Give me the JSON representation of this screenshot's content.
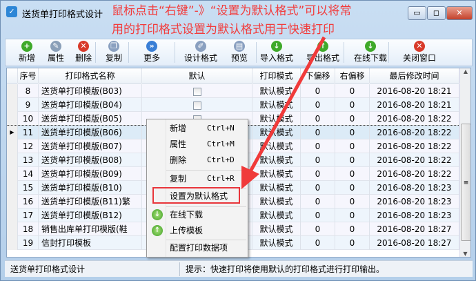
{
  "window": {
    "title": "送货单打印格式设计",
    "minimize": "▭",
    "maximize": "◻",
    "close": "✕"
  },
  "annotation": {
    "line1": "鼠标点击“右键”-》“设置为默认格式”可以将常",
    "line2": "用的打印格式设置为默认格式用于快速打印",
    "color": "#f23c3c"
  },
  "toolbar": [
    {
      "label": "新增",
      "icon": "plus-circle-icon",
      "color": "#3fa92a",
      "glyph": "+"
    },
    {
      "label": "属性",
      "icon": "edit-icon",
      "color": "#8a9fb8",
      "glyph": "✎"
    },
    {
      "label": "删除",
      "icon": "delete-circle-icon",
      "color": "#d83a2a",
      "glyph": "✕"
    },
    {
      "label": "复制",
      "icon": "copy-icon",
      "color": "#8aa0c0",
      "glyph": "❐"
    },
    {
      "label": "更多",
      "icon": "more-chevron-icon",
      "color": "#3a7fd6",
      "glyph": "»"
    },
    {
      "label": "设计格式",
      "icon": "design-icon",
      "color": "#8aa0c0",
      "glyph": "✐"
    },
    {
      "label": "预览",
      "icon": "preview-icon",
      "color": "#8aa0c0",
      "glyph": "▤"
    },
    {
      "label": "导入格式",
      "icon": "import-icon",
      "color": "#3fa92a",
      "glyph": "↓"
    },
    {
      "label": "导出格式",
      "icon": "export-icon",
      "color": "#3fa92a",
      "glyph": "↑"
    },
    {
      "label": "在线下载",
      "icon": "download-icon",
      "color": "#3fa92a",
      "glyph": "↓"
    },
    {
      "label": "关闭窗口",
      "icon": "close-window-icon",
      "color": "#d83a2a",
      "glyph": "✕"
    }
  ],
  "grid": {
    "columns": [
      "序号",
      "打印格式名称",
      "默认",
      "打印模式",
      "下偏移",
      "右偏移",
      "最后修改时间"
    ],
    "selected_row": "11",
    "rows": [
      [
        "8",
        "送货单打印模版(B03)",
        "",
        "默认模式",
        "0",
        "0",
        "2016-08-20 18:21"
      ],
      [
        "9",
        "送货单打印模版(B04)",
        "",
        "默认模式",
        "0",
        "0",
        "2016-08-20 18:21"
      ],
      [
        "10",
        "送货单打印模版(B05)",
        "",
        "默认模式",
        "0",
        "0",
        "2016-08-20 18:22"
      ],
      [
        "11",
        "送货单打印模版(B06)",
        "",
        "默认模式",
        "0",
        "0",
        "2016-08-20 18:22"
      ],
      [
        "12",
        "送货单打印模版(B07)",
        "",
        "默认模式",
        "0",
        "0",
        "2016-08-20 18:22"
      ],
      [
        "13",
        "送货单打印模版(B08)",
        "",
        "默认模式",
        "0",
        "0",
        "2016-08-20 18:22"
      ],
      [
        "14",
        "送货单打印模版(B09)",
        "",
        "默认模式",
        "0",
        "0",
        "2016-08-20 18:22"
      ],
      [
        "15",
        "送货单打印模版(B10)",
        "",
        "默认模式",
        "0",
        "0",
        "2016-08-20 18:23"
      ],
      [
        "16",
        "送货单打印模版(B11)繁",
        "",
        "默认模式",
        "0",
        "0",
        "2016-08-20 18:23"
      ],
      [
        "17",
        "送货单打印模版(B12)",
        "",
        "默认模式",
        "0",
        "0",
        "2016-08-20 18:23"
      ],
      [
        "18",
        "销售出库单打印模版(鞋",
        "",
        "默认模式",
        "0",
        "0",
        "2016-08-20 18:27"
      ],
      [
        "19",
        "信封打印模板",
        "",
        "默认模式",
        "0",
        "0",
        "2016-08-20 18:27"
      ]
    ]
  },
  "context_menu": {
    "new": {
      "label": "新增",
      "shortcut": "Ctrl+N"
    },
    "props": {
      "label": "属性",
      "shortcut": "Ctrl+M"
    },
    "del": {
      "label": "删除",
      "shortcut": "Ctrl+D"
    },
    "copy": {
      "label": "复制",
      "shortcut": "Ctrl+R"
    },
    "set_default": "设置为默认格式",
    "download": "在线下载",
    "upload": "上传模板",
    "config": "配置打印数据项"
  },
  "status": {
    "left": "送货单打印格式设计",
    "right": "提示：快速打印将使用默认的打印格式进行打印输出。"
  }
}
